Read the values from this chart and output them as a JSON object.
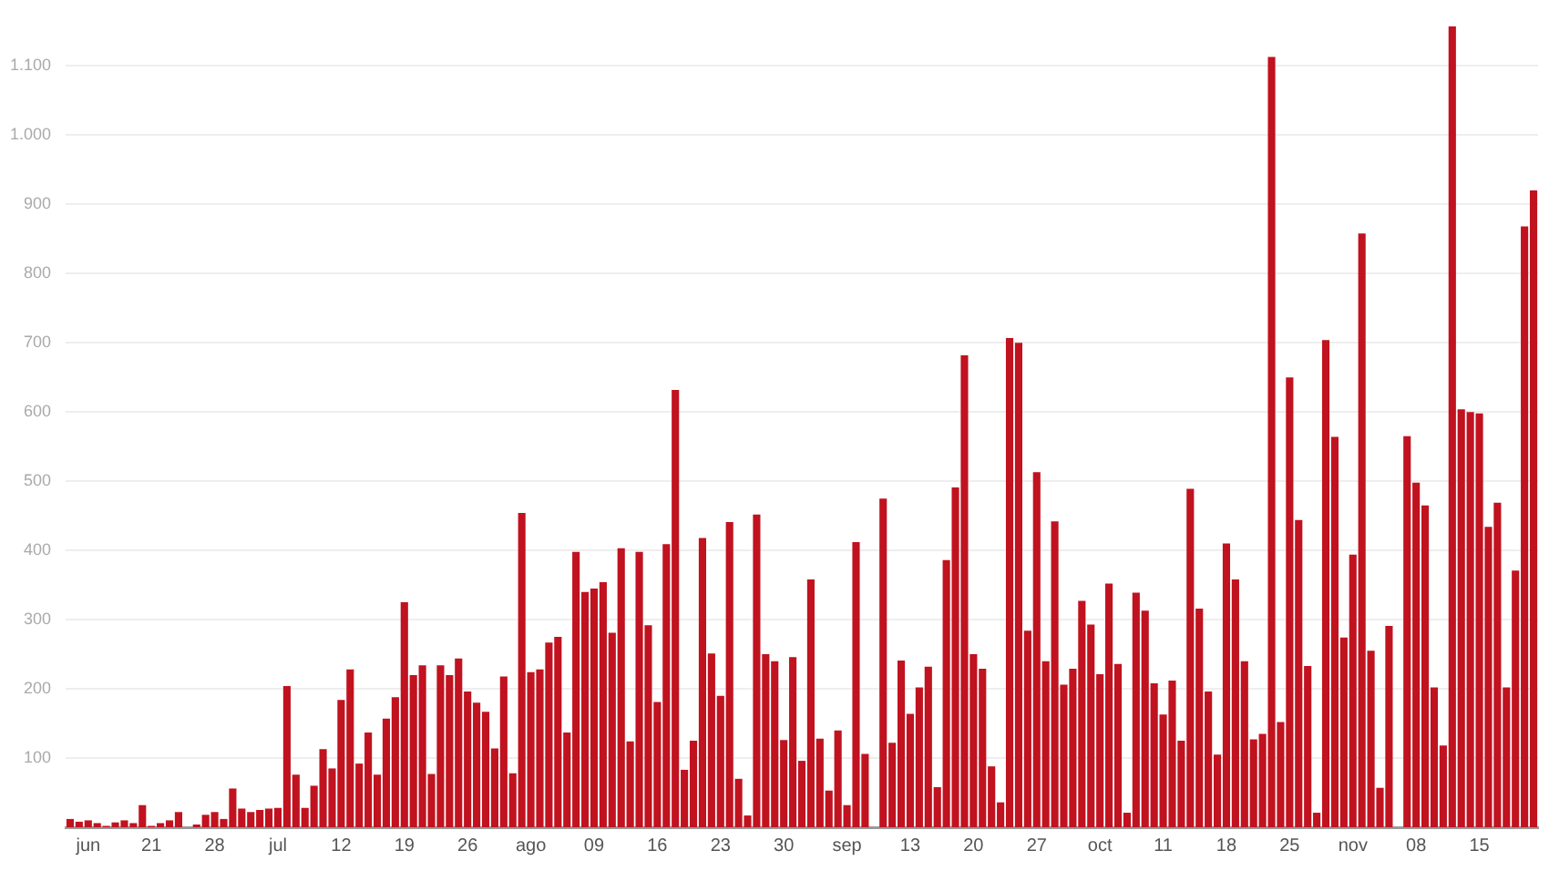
{
  "chart_data": {
    "type": "bar",
    "color": "#c1121f",
    "categories": [
      null,
      null,
      "jun",
      null,
      null,
      null,
      null,
      null,
      null,
      "21",
      null,
      null,
      null,
      null,
      null,
      null,
      "28",
      null,
      null,
      null,
      null,
      null,
      null,
      "jul",
      null,
      null,
      null,
      null,
      null,
      null,
      "12",
      null,
      null,
      null,
      null,
      null,
      null,
      "19",
      null,
      null,
      null,
      null,
      null,
      null,
      "26",
      null,
      null,
      null,
      null,
      null,
      null,
      "ago",
      null,
      null,
      null,
      null,
      null,
      null,
      "09",
      null,
      null,
      null,
      null,
      null,
      null,
      "16",
      null,
      null,
      null,
      null,
      null,
      null,
      "23",
      null,
      null,
      null,
      null,
      null,
      null,
      "30",
      null,
      null,
      null,
      null,
      null,
      null,
      "sep",
      null,
      null,
      null,
      null,
      null,
      null,
      "13",
      null,
      null,
      null,
      null,
      null,
      null,
      "20",
      null,
      null,
      null,
      null,
      null,
      null,
      "27",
      null,
      null,
      null,
      null,
      null,
      null,
      "oct",
      null,
      null,
      null,
      null,
      null,
      null,
      "11",
      null,
      null,
      null,
      null,
      null,
      null,
      "18",
      null,
      null,
      null,
      null,
      null,
      null,
      "25",
      null,
      null,
      null,
      null,
      null,
      null,
      "nov",
      null,
      null,
      null,
      null,
      null,
      null,
      "08",
      null,
      null,
      null,
      null,
      null,
      null,
      "15",
      null,
      null,
      null,
      null,
      null,
      null
    ],
    "values": [
      12,
      8,
      10,
      6,
      2,
      7,
      10,
      6,
      32,
      2,
      6,
      10,
      22,
      0,
      4,
      18,
      22,
      12,
      56,
      27,
      22,
      25,
      27,
      28,
      204,
      76,
      28,
      60,
      113,
      85,
      184,
      228,
      92,
      137,
      76,
      157,
      188,
      325,
      220,
      234,
      77,
      234,
      220,
      244,
      196,
      180,
      167,
      114,
      218,
      78,
      454,
      224,
      228,
      267,
      275,
      137,
      398,
      340,
      345,
      354,
      281,
      403,
      124,
      398,
      292,
      181,
      409,
      632,
      83,
      125,
      418,
      251,
      190,
      441,
      70,
      17,
      452,
      250,
      240,
      126,
      246,
      96,
      358,
      128,
      53,
      140,
      32,
      412,
      106,
      0,
      475,
      122,
      241,
      164,
      202,
      232,
      58,
      386,
      491,
      682,
      250,
      229,
      88,
      36,
      707,
      700,
      284,
      513,
      240,
      442,
      206,
      229,
      327,
      293,
      221,
      352,
      236,
      21,
      339,
      313,
      208,
      163,
      212,
      125,
      489,
      316,
      196,
      105,
      410,
      358,
      240,
      127,
      135,
      1113,
      152,
      650,
      444,
      233,
      21,
      704,
      564,
      274,
      394,
      858,
      255,
      57,
      291,
      0,
      565,
      498,
      465,
      202,
      118,
      1157,
      604,
      600,
      598,
      434,
      469,
      202,
      371,
      868,
      920
    ],
    "ylim": [
      0,
      1160
    ],
    "yticks": [
      100,
      200,
      300,
      400,
      500,
      600,
      700,
      800,
      900,
      {
        "value": 1000,
        "label": "1.000"
      },
      {
        "value": 1100,
        "label": "1.100"
      }
    ],
    "grid": "y",
    "legend": false
  }
}
